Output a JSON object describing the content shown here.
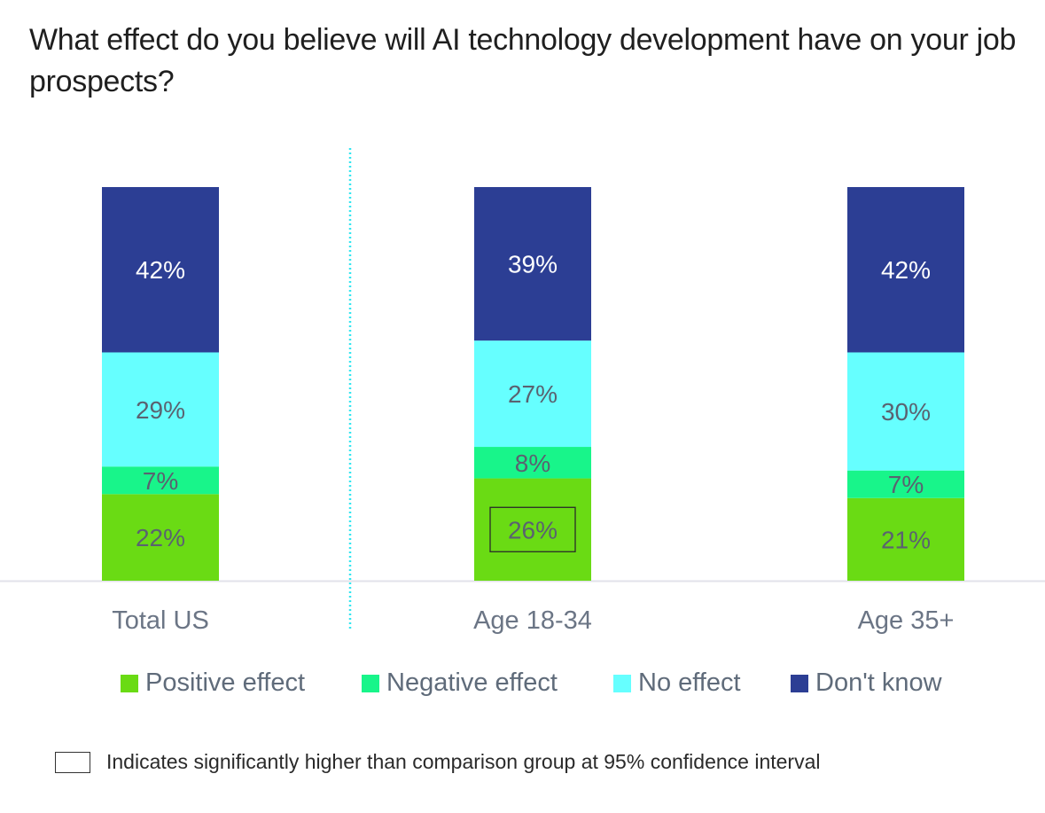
{
  "chart_data": {
    "type": "bar",
    "stacked": true,
    "orientation": "vertical",
    "title": "What effect do you believe will AI technology development have on your job prospects?",
    "xlabel": "",
    "ylabel": "",
    "ylim": [
      0,
      100
    ],
    "grid": false,
    "categories": [
      "Total US",
      "Age 18-34",
      "Age 35+"
    ],
    "series": [
      {
        "name": "Positive effect",
        "color": "#6ADB14",
        "values": [
          22,
          26,
          21
        ],
        "labels": [
          "22%",
          "26%",
          "21%"
        ]
      },
      {
        "name": "Negative effect",
        "color": "#18F58A",
        "values": [
          7,
          8,
          7
        ],
        "labels": [
          "7%",
          "8%",
          "7%"
        ]
      },
      {
        "name": "No effect",
        "color": "#66FFFF",
        "values": [
          29,
          27,
          30
        ],
        "labels": [
          "29%",
          "27%",
          "30%"
        ]
      },
      {
        "name": "Don't know",
        "color": "#2C3E94",
        "values": [
          42,
          39,
          42
        ],
        "labels": [
          "42%",
          "39%",
          "42%"
        ]
      }
    ],
    "highlighted": [
      {
        "series": "Positive effect",
        "category": "Age 18-34"
      }
    ],
    "divider_after_category": "Total US",
    "divider_color": "#33E6F0",
    "legend": {
      "placement": "bottom",
      "entries": [
        "Positive effect",
        "Negative effect",
        "No effect",
        "Don't know"
      ]
    },
    "label_colors": {
      "dark_segment": "#FFFFFF",
      "light_segment": "#5A6270"
    },
    "axis_label_color": "#6B7585",
    "baseline_color": "#E2E2EA"
  },
  "footnote": {
    "text": "Indicates significantly higher than comparison group at 95% confidence interval"
  }
}
